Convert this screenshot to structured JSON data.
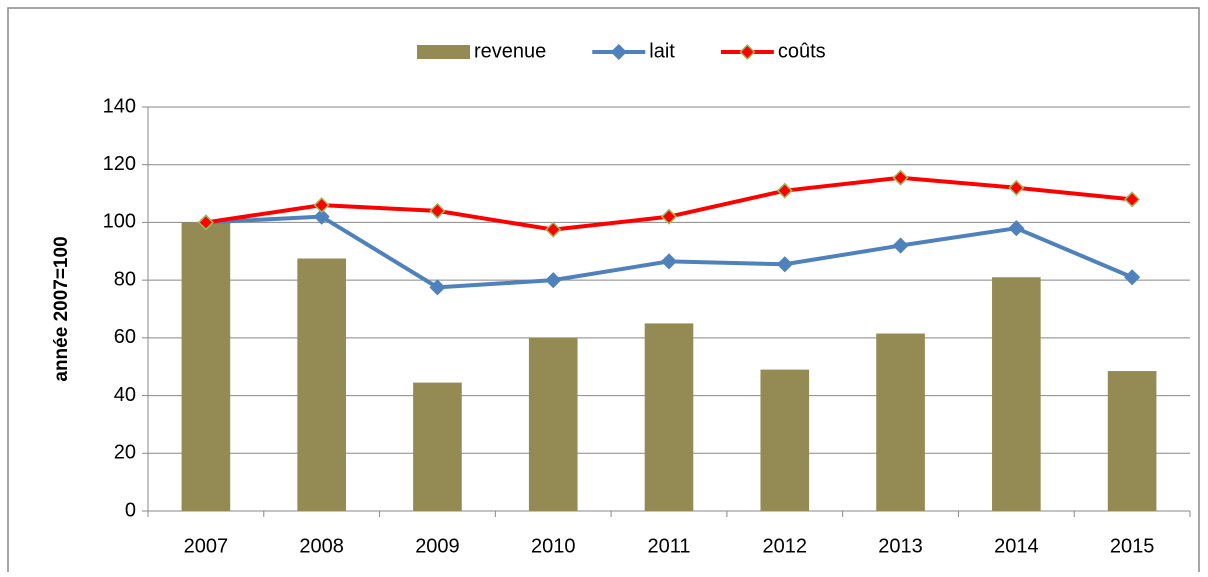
{
  "chart_data": {
    "type": "bar",
    "y_label": "année 2007=100",
    "categories": [
      "2007",
      "2008",
      "2009",
      "2010",
      "2011",
      "2012",
      "2013",
      "2014",
      "2015"
    ],
    "series": [
      {
        "name": "revenue",
        "type": "bar",
        "color": "#948a54",
        "values": [
          100,
          87.5,
          44.5,
          60,
          65,
          49,
          61.5,
          81,
          48.5
        ]
      },
      {
        "name": "lait",
        "type": "line",
        "color": "#4f81bd",
        "marker_color": "#4f81bd",
        "values": [
          100,
          102,
          77.5,
          80,
          86.5,
          85.5,
          92,
          98,
          81
        ]
      },
      {
        "name": "coûts",
        "type": "line",
        "color": "#ff0000",
        "marker_color": "#9bbb59",
        "values": [
          100,
          106,
          104,
          97.5,
          102,
          111,
          115.5,
          112,
          108
        ]
      }
    ],
    "ylim": [
      0,
      140
    ],
    "yticks": [
      0,
      20,
      40,
      60,
      80,
      100,
      120,
      140
    ],
    "grid": true,
    "legend": "top"
  }
}
